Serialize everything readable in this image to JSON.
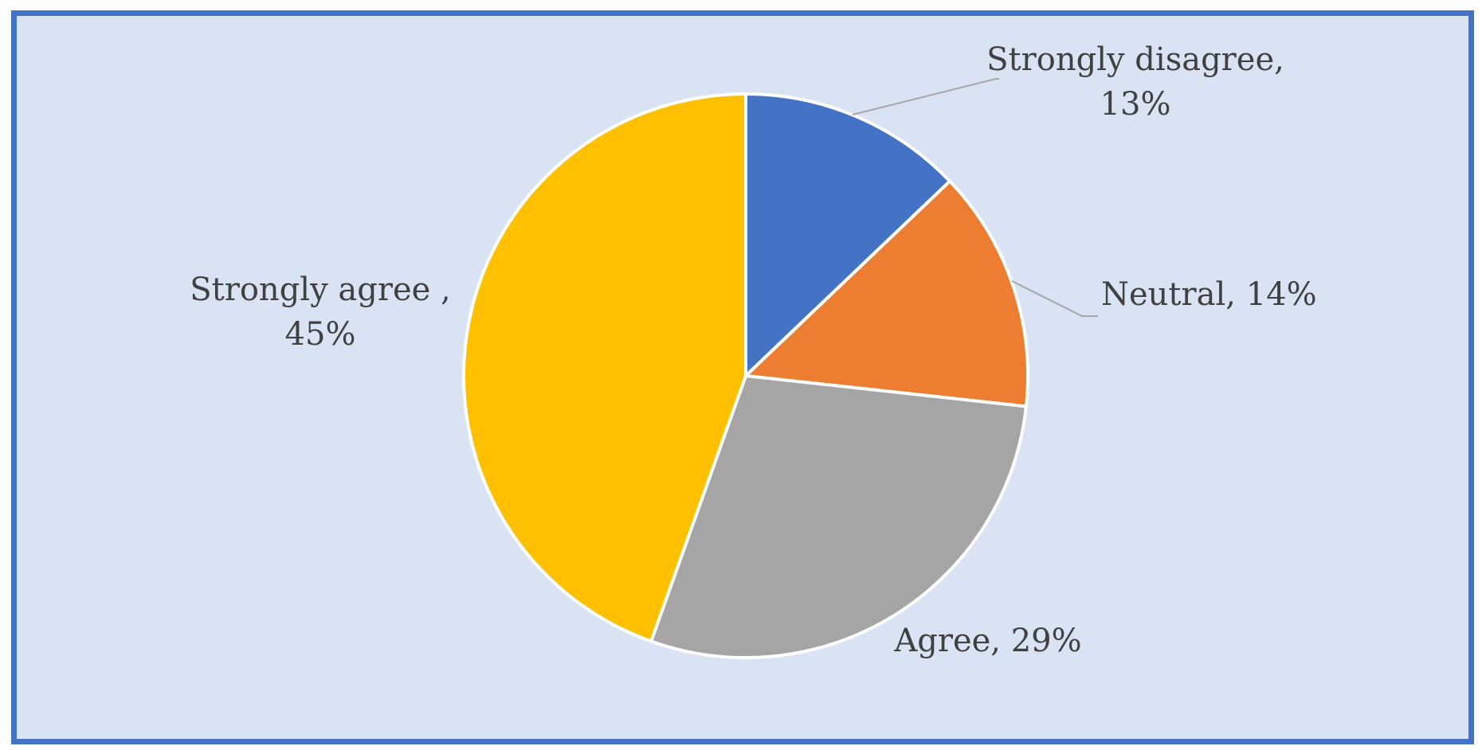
{
  "chart_data": {
    "type": "pie",
    "title": "",
    "slices": [
      {
        "label": "Strongly disagree",
        "value": 13,
        "label_lines": [
          "Strongly disagree,",
          "13%"
        ],
        "color": "#4472c4"
      },
      {
        "label": "Neutral",
        "value": 14,
        "label_lines": [
          "Neutral, 14%"
        ],
        "color": "#ed7d31"
      },
      {
        "label": "Agree",
        "value": 29,
        "label_lines": [
          "Agree, 29%"
        ],
        "color": "#a5a5a5"
      },
      {
        "label": "Strongly agree",
        "value": 45,
        "label_lines": [
          "Strongly agree ,",
          "45%"
        ],
        "color": "#ffc000"
      }
    ],
    "start_angle_deg": 0,
    "direction": "clockwise",
    "legend": "none",
    "data_labels": "outside with leader lines",
    "background_color": "#dae3f3",
    "border_color": "#4472c4"
  }
}
